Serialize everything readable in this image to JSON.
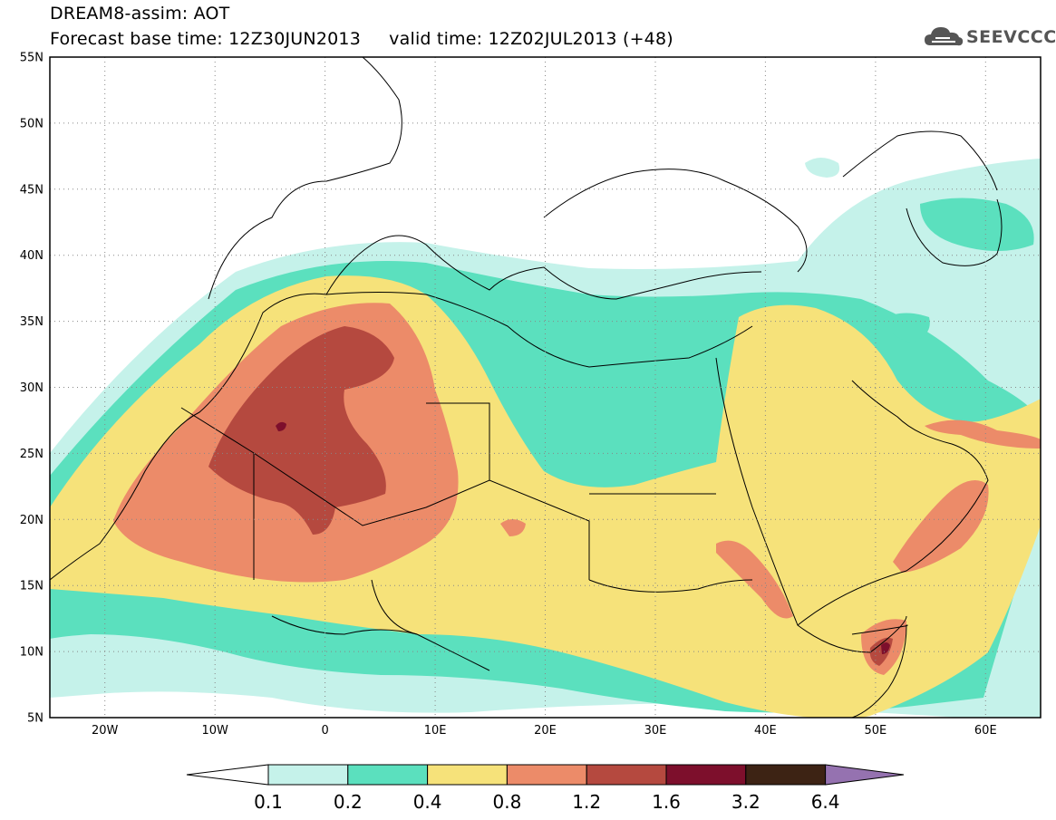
{
  "header": {
    "title_line1": "DREAM8-assim: AOT",
    "title_line2": "Forecast base time: 12Z30JUN2013     valid time: 12Z02JUL2013 (+48)"
  },
  "logo": {
    "text": "SEEVCCC",
    "icon": "cloud-logo-icon",
    "color": "#555555"
  },
  "map": {
    "lat_labels": [
      "55N",
      "50N",
      "45N",
      "40N",
      "35N",
      "30N",
      "25N",
      "20N",
      "15N",
      "10N",
      "5N"
    ],
    "lon_labels": [
      "20W",
      "10W",
      "0",
      "10E",
      "20E",
      "30E",
      "40E",
      "50E",
      "60E"
    ],
    "lat_range": [
      5,
      55
    ],
    "lon_range": [
      -25,
      65
    ],
    "grid": "dotted"
  },
  "colorbar": {
    "labels": [
      "0.1",
      "0.2",
      "0.4",
      "0.8",
      "1.2",
      "1.6",
      "3.2",
      "6.4"
    ],
    "colors": [
      "#c5f2ea",
      "#5be0be",
      "#f6e27a",
      "#ec8b69",
      "#b5493f",
      "#7d0f2c",
      "#3d2314"
    ],
    "low_arrow_color": "#ffffff",
    "high_arrow_color": "#9572b0"
  }
}
